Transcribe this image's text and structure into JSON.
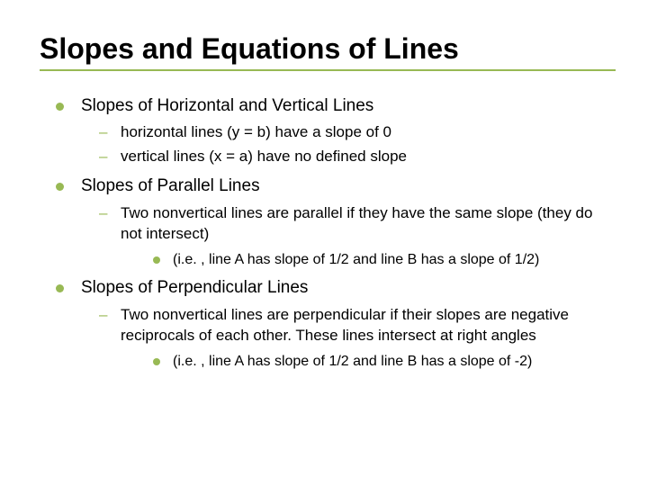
{
  "colors": {
    "accent": "#98b954",
    "background": "#ffffff",
    "text": "#000000"
  },
  "slide": {
    "title": "Slopes and Equations of Lines",
    "sections": [
      {
        "heading": "Slopes of Horizontal and Vertical Lines",
        "items": [
          {
            "text": "horizontal lines (y = b) have a slope of 0"
          },
          {
            "text": "vertical lines (x = a) have no defined slope"
          }
        ]
      },
      {
        "heading": "Slopes of Parallel Lines",
        "items": [
          {
            "text": "Two nonvertical lines are parallel if they have the same slope (they do not intersect)",
            "sub": [
              "(i.e. , line A has slope of 1/2 and line B has a slope of 1/2)"
            ]
          }
        ]
      },
      {
        "heading": "Slopes of Perpendicular Lines",
        "items": [
          {
            "text": "Two nonvertical lines are perpendicular if their slopes are negative reciprocals of each other. These lines intersect at right angles",
            "sub": [
              "(i.e. , line A has slope of 1/2 and line B has a slope of -2)"
            ]
          }
        ]
      }
    ]
  }
}
